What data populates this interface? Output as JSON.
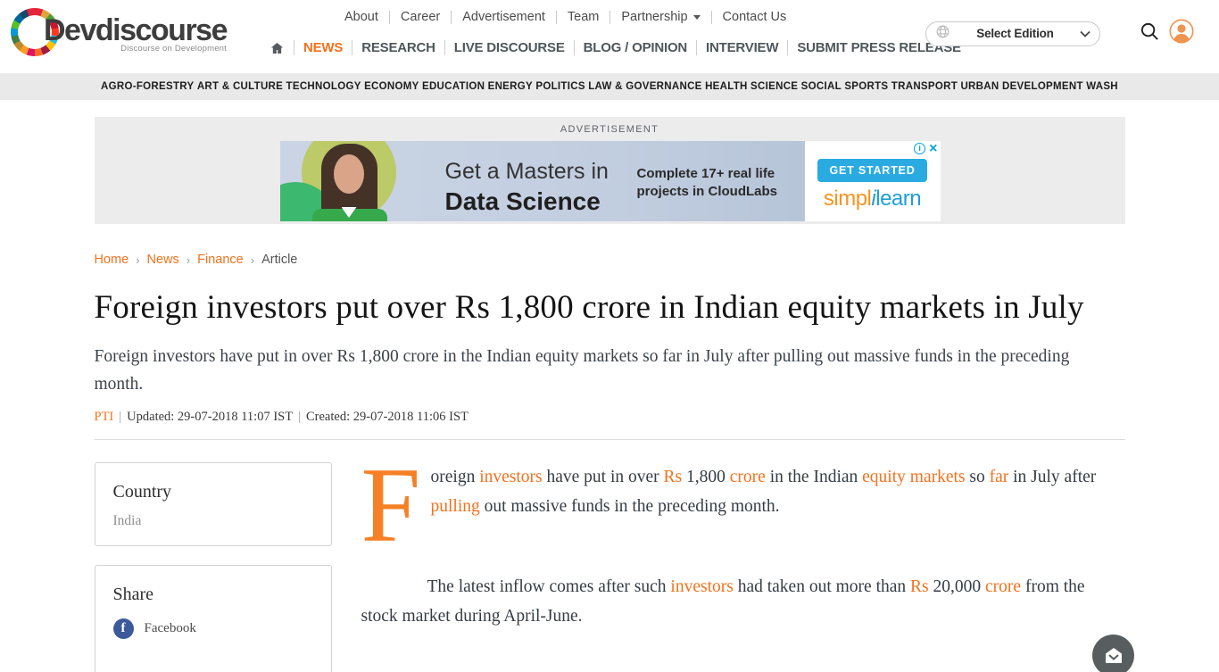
{
  "colors": {
    "accent_orange": "#f4711c",
    "drop_cap_orange": "#f58025",
    "nav_gray": "#4e575c",
    "category_bar_bg": "#e9e9e9",
    "facebook_blue": "#3c5a99",
    "ad_cta_blue": "#29abe2",
    "simplilearn_orange": "#f7941e",
    "simplilearn_blue": "#1e9fd8"
  },
  "header": {
    "logo_title": "Devdiscourse",
    "logo_tagline": "Discourse on Development",
    "utility_nav": [
      "About",
      "Career",
      "Advertisement",
      "Team",
      "Partnership",
      "Contact Us"
    ],
    "main_nav": [
      "NEWS",
      "RESEARCH",
      "LIVE DISCOURSE",
      "BLOG / OPINION",
      "INTERVIEW",
      "SUBMIT PRESS RELEASE"
    ],
    "edition_label": "Select Edition"
  },
  "category_nav": [
    "AGRO-FORESTRY",
    "ART & CULTURE",
    "TECHNOLOGY",
    "ECONOMY",
    "EDUCATION",
    "ENERGY",
    "POLITICS",
    "LAW & GOVERNANCE",
    "HEALTH",
    "SCIENCE",
    "SOCIAL",
    "SPORTS",
    "TRANSPORT",
    "URBAN DEVELOPMENT",
    "WASH"
  ],
  "ad": {
    "section_label": "ADVERTISEMENT",
    "headline_line1": "Get a Masters in",
    "headline_line2": "Data Science",
    "detail_line1": "Complete 17+ real life",
    "detail_line2": "projects in CloudLabs",
    "cta": "GET STARTED",
    "brand_left": "simpl",
    "brand_i": "i",
    "brand_right": "learn"
  },
  "breadcrumb": {
    "links": [
      "Home",
      "News",
      "Finance"
    ],
    "current": "Article",
    "separator": "›"
  },
  "article": {
    "title": "Foreign investors put over Rs 1,800 crore in Indian equity markets in July",
    "summary": "Foreign investors have put in over Rs 1,800 crore in the Indian equity markets so far in July after pulling out massive funds in the preceding month.",
    "byline_source": "PTI",
    "byline_separator": "|",
    "byline_updated": "Updated: 29-07-2018 11:07 IST",
    "byline_created": "Created: 29-07-2018 11:06 IST",
    "drop_cap": "F",
    "para1": [
      {
        "text": "oreign "
      },
      {
        "text": "investors",
        "link": true
      },
      {
        "text": " have put in over "
      },
      {
        "text": "Rs",
        "link": true
      },
      {
        "text": " 1,800 "
      },
      {
        "text": "crore",
        "link": true
      },
      {
        "text": " in the Indian "
      },
      {
        "text": "equity markets",
        "link": true
      },
      {
        "text": " so "
      },
      {
        "text": "far",
        "link": true
      },
      {
        "text": " in July after "
      },
      {
        "text": "pulling",
        "link": true
      },
      {
        "text": " out massive funds in the preceding month."
      }
    ],
    "para2": [
      {
        "text": "The latest inflow comes after such "
      },
      {
        "text": "investors",
        "link": true
      },
      {
        "text": " had taken out more than "
      },
      {
        "text": "Rs",
        "link": true
      },
      {
        "text": " 20,000 "
      },
      {
        "text": "crore",
        "link": true
      },
      {
        "text": " from the stock market during April-June."
      }
    ]
  },
  "sidebar": {
    "country_heading": "Country",
    "country_value": "India",
    "share_heading": "Share",
    "share_item_facebook": "Facebook"
  }
}
